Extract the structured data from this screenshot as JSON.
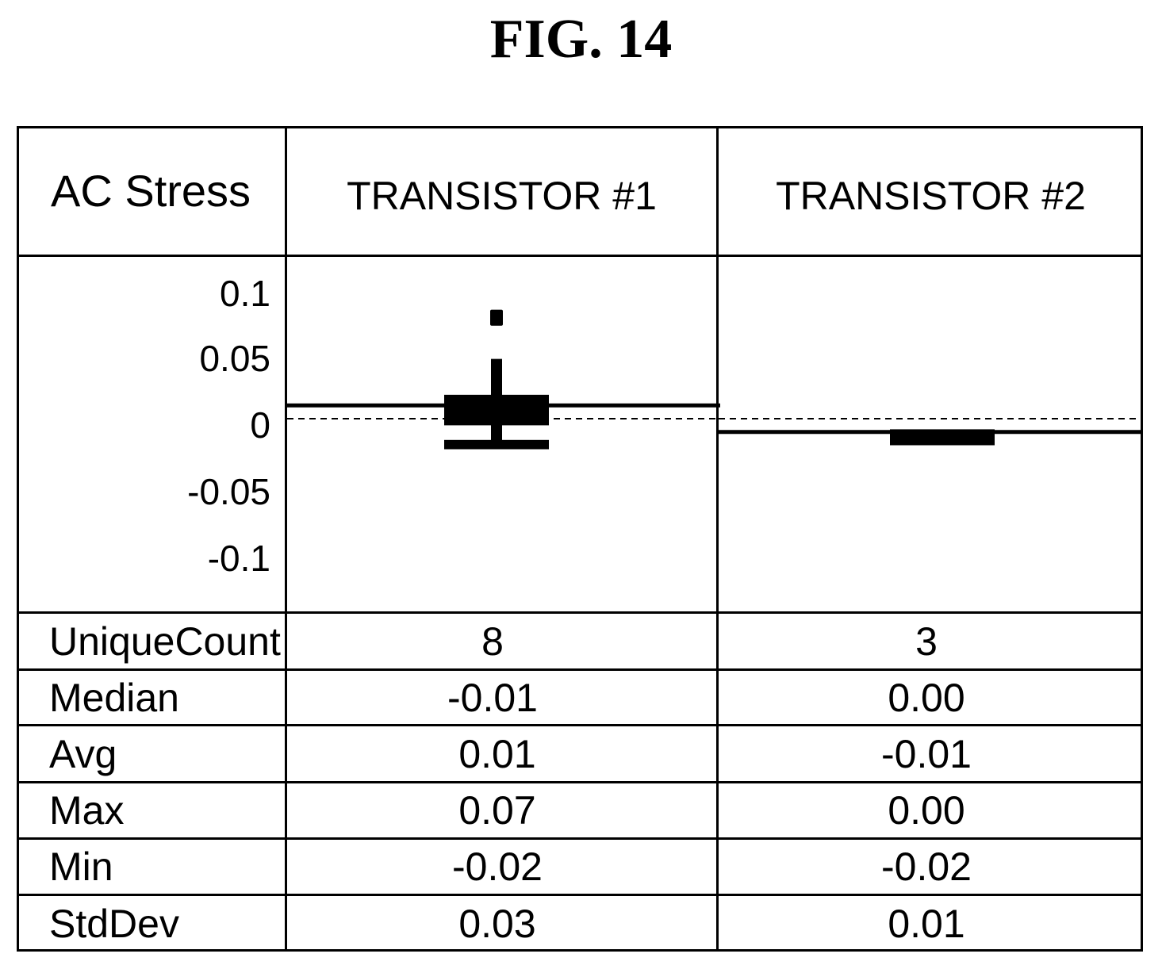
{
  "figure_label": "FIG. 14",
  "table": {
    "corner_label": "AC Stress",
    "columns": [
      "TRANSISTOR #1",
      "TRANSISTOR #2"
    ],
    "rows": [
      {
        "label": "UniqueCount",
        "values": [
          "8",
          "3"
        ]
      },
      {
        "label": "Median",
        "values": [
          "-0.01",
          "0.00"
        ]
      },
      {
        "label": "Avg",
        "values": [
          "0.01",
          "-0.01"
        ]
      },
      {
        "label": "Max",
        "values": [
          "0.07",
          "0.00"
        ]
      },
      {
        "label": "Min",
        "values": [
          "-0.02",
          "-0.02"
        ]
      },
      {
        "label": "StdDev",
        "values": [
          "0.03",
          "0.01"
        ]
      }
    ]
  },
  "chart_data": {
    "type": "box",
    "title": "",
    "xlabel": "",
    "ylabel": "",
    "ylim": [
      -0.12,
      0.13
    ],
    "y_ticks": [
      "0.1",
      "0.05",
      "0",
      "-0.05",
      "-0.1"
    ],
    "y_tick_values": [
      0.1,
      0.05,
      0,
      -0.05,
      -0.1
    ],
    "reference_line": 0,
    "series": [
      {
        "category": "TRANSISTOR #1",
        "mean": 0.01,
        "median": -0.01,
        "max": 0.07,
        "min": -0.02,
        "box_q1": -0.005,
        "box_q3": 0.018,
        "lower_bar": [
          -0.023,
          -0.016
        ],
        "whisker_gap": [
          0.045,
          0.054
        ],
        "outlier_top": [
          0.07,
          0.082
        ]
      },
      {
        "category": "TRANSISTOR #2",
        "mean": -0.01,
        "median": 0.0,
        "max": 0.0,
        "min": -0.02,
        "box_q1": -0.02,
        "box_q3": -0.008
      }
    ]
  }
}
